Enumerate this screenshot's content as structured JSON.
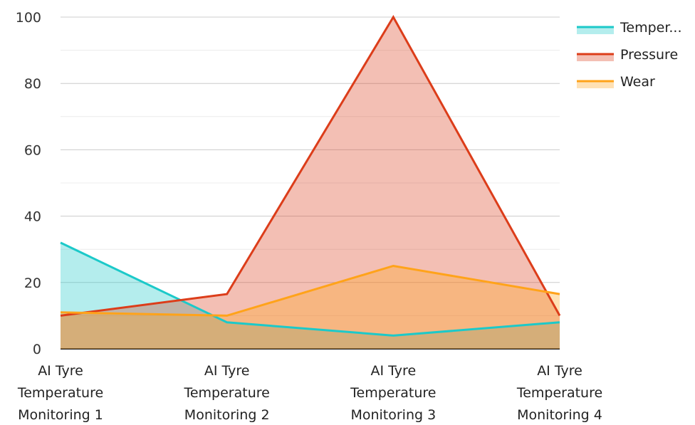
{
  "chart_data": {
    "type": "area",
    "categories": [
      [
        "AI Tyre",
        "Temperature",
        "Monitoring 1"
      ],
      [
        "AI Tyre",
        "Temperature",
        "Monitoring 2"
      ],
      [
        "AI Tyre",
        "Temperature",
        "Monitoring 3"
      ],
      [
        "AI Tyre",
        "Temperature",
        "Monitoring 4"
      ]
    ],
    "series": [
      {
        "name": "Temper...",
        "values": [
          32,
          8,
          4,
          8
        ],
        "color": "#1cc9c9"
      },
      {
        "name": "Pressure",
        "values": [
          10,
          16.5,
          100,
          10
        ],
        "color": "#dc3d1a"
      },
      {
        "name": "Wear",
        "values": [
          11,
          10,
          25,
          16.5
        ],
        "color": "#ffa31a"
      }
    ],
    "ylim": [
      0,
      100
    ],
    "yticks": [
      0,
      20,
      40,
      60,
      80,
      100
    ],
    "grid": true,
    "legend_position": "top-right"
  }
}
